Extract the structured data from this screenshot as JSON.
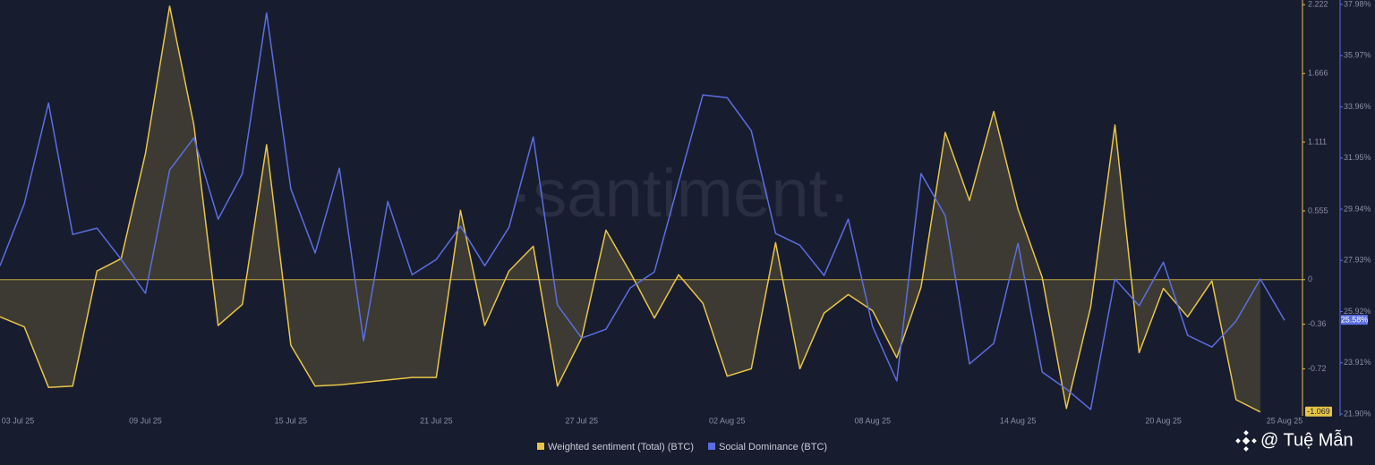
{
  "watermark": "·santiment·",
  "credit": "@ Tuệ Mẫn",
  "chart_data": {
    "type": "line",
    "categories": [
      "03 Jul 25",
      null,
      null,
      null,
      null,
      null,
      "09 Jul 25",
      null,
      null,
      null,
      null,
      null,
      "15 Jul 25",
      null,
      null,
      null,
      null,
      null,
      "21 Jul 25",
      null,
      null,
      null,
      null,
      null,
      "27 Jul 25",
      null,
      null,
      null,
      null,
      null,
      "02 Aug 25",
      null,
      null,
      null,
      null,
      null,
      "08 Aug 25",
      null,
      null,
      null,
      null,
      null,
      "14 Aug 25",
      null,
      null,
      null,
      null,
      null,
      "20 Aug 25",
      null,
      null,
      null,
      null,
      "25 Aug 25"
    ],
    "series": [
      {
        "name": "Weighted sentiment (Total) (BTC)",
        "color": "#e8c547",
        "fill": "rgba(232,197,71,0.18)",
        "values": [
          -0.3,
          -0.38,
          -0.87,
          -0.86,
          0.07,
          0.17,
          1.02,
          2.21,
          1.25,
          -0.37,
          -0.2,
          1.09,
          -0.53,
          -0.86,
          -0.85,
          -0.83,
          -0.81,
          -0.79,
          -0.79,
          0.56,
          -0.37,
          0.07,
          0.27,
          -0.86,
          -0.47,
          0.4,
          0.06,
          -0.31,
          0.04,
          -0.19,
          -0.78,
          -0.72,
          0.3,
          -0.72,
          -0.27,
          -0.12,
          -0.25,
          -0.63,
          -0.06,
          1.19,
          0.64,
          1.36,
          0.57,
          0.02,
          -1.04,
          -0.22,
          1.25,
          -0.59,
          -0.07,
          -0.3,
          -0.01,
          -0.97,
          -1.069,
          null
        ],
        "value_labels": [
          null,
          null,
          null,
          null,
          null,
          null,
          null,
          null,
          null,
          null,
          null,
          null,
          null,
          null,
          null,
          null,
          null,
          null,
          null,
          null,
          null,
          null,
          null,
          null,
          null,
          null,
          null,
          null,
          null,
          null,
          null,
          null,
          null,
          null,
          null,
          null,
          null,
          null,
          null,
          null,
          null,
          null,
          null,
          null,
          null,
          null,
          null,
          null,
          null,
          null,
          null,
          null,
          "-1.069",
          null
        ]
      },
      {
        "name": "Social Dominance (BTC)",
        "color": "#5b6ee1",
        "axis": "y2",
        "values": [
          27.72,
          30.15,
          34.11,
          28.95,
          29.2,
          27.97,
          26.64,
          31.48,
          32.74,
          29.55,
          31.34,
          37.65,
          30.74,
          28.22,
          31.55,
          24.78,
          30.25,
          27.37,
          27.97,
          29.27,
          27.72,
          29.23,
          32.78,
          26.18,
          24.88,
          25.23,
          26.85,
          27.48,
          30.99,
          34.43,
          34.32,
          33.02,
          28.99,
          28.53,
          27.34,
          29.55,
          25.34,
          23.2,
          31.34,
          29.69,
          23.87,
          24.67,
          28.6,
          23.55,
          22.88,
          22.08,
          27.2,
          26.15,
          27.86,
          24.99,
          24.53,
          25.55,
          27.2,
          25.58
        ],
        "value_labels": [
          null,
          null,
          null,
          null,
          null,
          null,
          null,
          null,
          null,
          null,
          null,
          null,
          null,
          null,
          null,
          null,
          null,
          null,
          null,
          null,
          null,
          null,
          null,
          null,
          null,
          null,
          null,
          null,
          null,
          null,
          null,
          null,
          null,
          null,
          null,
          null,
          null,
          null,
          null,
          null,
          null,
          null,
          null,
          null,
          null,
          null,
          null,
          null,
          null,
          null,
          null,
          null,
          null,
          "25.58%"
        ]
      }
    ],
    "ylim": [
      -1.1,
      2.26
    ],
    "yticks": [
      2.222,
      1.666,
      1.111,
      0.555,
      0,
      -0.36,
      -0.72
    ],
    "y2lim": [
      21.83,
      38.155
    ],
    "y2ticks": [
      {
        "value": 37.98,
        "label": "37.98%"
      },
      {
        "value": 35.97,
        "label": "35.97%"
      },
      {
        "value": 33.96,
        "label": "33.96%"
      },
      {
        "value": 31.95,
        "label": "31.95%"
      },
      {
        "value": 29.94,
        "label": "29.94%"
      },
      {
        "value": 27.93,
        "label": "27.93%"
      },
      {
        "value": 25.92,
        "label": "25.92%"
      },
      {
        "value": 23.91,
        "label": "23.91%"
      },
      {
        "value": 21.9,
        "label": "21.90%"
      }
    ],
    "legend": "bottom",
    "grid": false
  }
}
